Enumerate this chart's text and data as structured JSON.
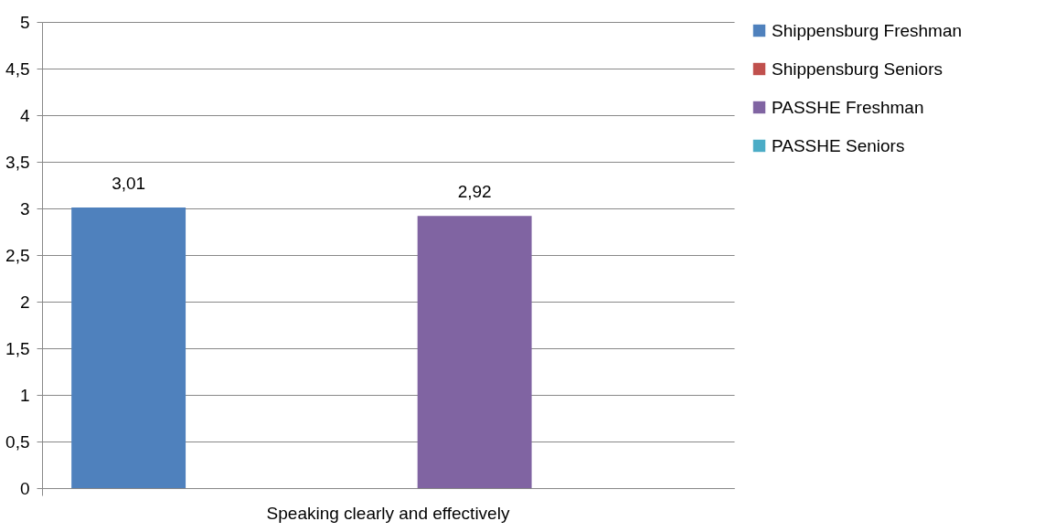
{
  "chart_data": {
    "type": "bar",
    "categories": [
      "Speaking clearly and effectively"
    ],
    "series": [
      {
        "name": "Shippensburg Freshman",
        "color": "#4f81bd",
        "values": [
          3.01
        ],
        "value_labels": [
          "3,01"
        ]
      },
      {
        "name": "Shippensburg Seniors",
        "color": "#c0504d",
        "values": [
          null
        ],
        "value_labels": [
          null
        ]
      },
      {
        "name": "PASSHE Freshman",
        "color": "#8064a2",
        "values": [
          2.92
        ],
        "value_labels": [
          "2,92"
        ]
      },
      {
        "name": "PASSHE Seniors",
        "color": "#4bacc6",
        "values": [
          null
        ],
        "value_labels": [
          null
        ]
      }
    ],
    "ylim": [
      0,
      5
    ],
    "yticks": [
      0,
      {
        "value": 0.5,
        "label": "0,5"
      },
      1,
      {
        "value": 1.5,
        "label": "1,5"
      },
      2,
      {
        "value": 2.5,
        "label": "2,5"
      },
      3,
      {
        "value": 3.5,
        "label": "3,5"
      },
      4,
      {
        "value": 4.5,
        "label": "4,5"
      },
      5
    ],
    "grid": "y",
    "legend": "right"
  }
}
